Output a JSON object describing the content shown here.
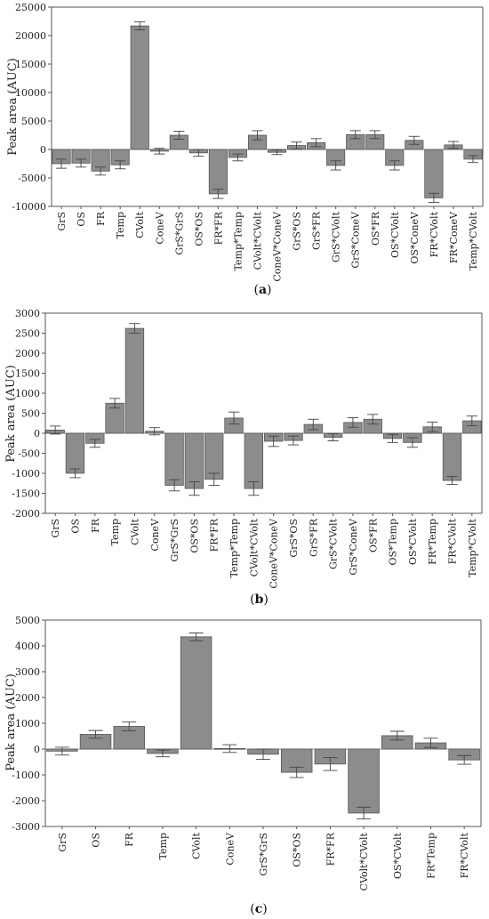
{
  "chart_data": [
    {
      "type": "bar",
      "panel_label": "a",
      "ylabel": "Peak area (AUC)",
      "ylim": [
        -10000,
        25000
      ],
      "yticks": [
        -10000,
        -5000,
        0,
        5000,
        10000,
        15000,
        20000,
        25000
      ],
      "categories": [
        "GrS",
        "OS",
        "FR",
        "Temp",
        "CVolt",
        "ConeV",
        "GrS*GrS",
        "OS*OS",
        "FR*FR",
        "Temp*Temp",
        "CVolt*CVolt",
        "ConeV*ConeV",
        "GrS*OS",
        "GrS*FR",
        "GrS*CVolt",
        "GrS*ConeV",
        "OS*FR",
        "OS*CVolt",
        "OS*ConeV",
        "FR*CVolt",
        "FR*ConeV",
        "Temp*CVolt"
      ],
      "values": [
        -2500,
        -2400,
        -3800,
        -2700,
        21700,
        -300,
        2500,
        -600,
        -7800,
        -1400,
        2500,
        -500,
        700,
        1200,
        -2800,
        2600,
        2600,
        -2800,
        1600,
        -8500,
        800,
        -1700
      ],
      "errors": [
        800,
        700,
        700,
        700,
        700,
        500,
        700,
        600,
        800,
        600,
        800,
        400,
        600,
        700,
        800,
        700,
        700,
        800,
        700,
        800,
        600,
        600
      ],
      "grid": false,
      "legend": "none"
    },
    {
      "type": "bar",
      "panel_label": "b",
      "ylabel": "Peak area (AUC)",
      "ylim": [
        -2000,
        3000
      ],
      "yticks": [
        -2000,
        -1500,
        -1000,
        -500,
        0,
        500,
        1000,
        1500,
        2000,
        2500,
        3000
      ],
      "categories": [
        "GrS",
        "OS",
        "FR",
        "Temp",
        "CVolt",
        "ConeV",
        "GrS*GrS",
        "OS*OS",
        "FR*FR",
        "Temp*Temp",
        "CVolt*CVolt",
        "ConeV*ConeV",
        "GrS*OS",
        "GrS*FR",
        "GrS*CVolt",
        "GrS*ConeV",
        "OS*FR",
        "OS*Temp",
        "OS*CVolt",
        "FR*Temp",
        "FR*CVolt",
        "Temp*CVolt"
      ],
      "values": [
        80,
        -1000,
        -250,
        750,
        2620,
        50,
        -1300,
        -1380,
        -1150,
        380,
        -1380,
        -200,
        -180,
        220,
        -100,
        270,
        350,
        -130,
        -230,
        160,
        -1180,
        310
      ],
      "errors": [
        100,
        110,
        100,
        120,
        120,
        90,
        140,
        170,
        150,
        150,
        170,
        130,
        110,
        130,
        90,
        120,
        120,
        100,
        120,
        120,
        100,
        120
      ],
      "grid": false,
      "legend": "none"
    },
    {
      "type": "bar",
      "panel_label": "c",
      "ylabel": "Peak area (AUC)",
      "ylim": [
        -3000,
        5000
      ],
      "yticks": [
        -3000,
        -2000,
        -1000,
        0,
        1000,
        2000,
        3000,
        4000,
        5000
      ],
      "categories": [
        "GrS",
        "OS",
        "FR",
        "Temp",
        "CVolt",
        "ConeV",
        "GrS*GrS",
        "OS*OS",
        "FR*FR",
        "CVolt*CVolt",
        "OS*CVolt",
        "FR*Temp",
        "FR*CVolt"
      ],
      "values": [
        -80,
        570,
        880,
        -170,
        4350,
        20,
        -200,
        -900,
        -580,
        -2480,
        520,
        240,
        -420
      ],
      "errors": [
        150,
        150,
        170,
        130,
        150,
        150,
        200,
        200,
        250,
        230,
        170,
        180,
        170
      ],
      "grid": false,
      "legend": "none"
    }
  ]
}
